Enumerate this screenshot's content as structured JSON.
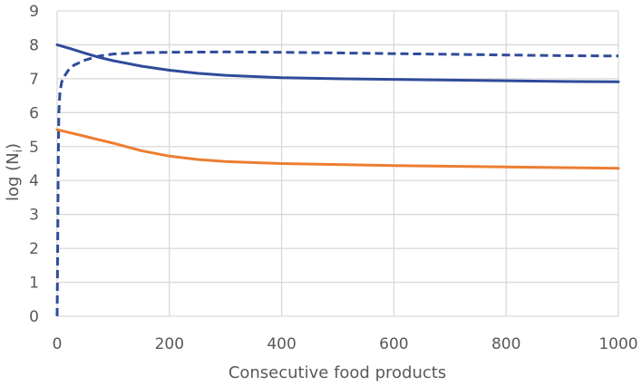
{
  "chart_data": {
    "type": "line",
    "title": "",
    "xlabel": "Consecutive food products",
    "ylabel": {
      "base": "log (N",
      "subscript": "i",
      "close": ")"
    },
    "xlim": [
      0,
      1000
    ],
    "ylim": [
      0,
      9
    ],
    "xticks": [
      0,
      200,
      400,
      600,
      800,
      1000
    ],
    "yticks": [
      0,
      1,
      2,
      3,
      4,
      5,
      6,
      7,
      8,
      9
    ],
    "grid": true,
    "legend": "none",
    "series": [
      {
        "name": "solid-blue",
        "color": "#2f4b9a",
        "dash": "solid",
        "x": [
          0,
          25,
          50,
          75,
          100,
          150,
          200,
          250,
          300,
          400,
          500,
          600,
          700,
          800,
          900,
          1000
        ],
        "y": [
          8.0,
          7.88,
          7.75,
          7.63,
          7.53,
          7.37,
          7.25,
          7.16,
          7.1,
          7.03,
          7.0,
          6.98,
          6.96,
          6.94,
          6.92,
          6.91
        ]
      },
      {
        "name": "dashed-blue",
        "color": "#2f4b9a",
        "dash": "dashed",
        "x": [
          0,
          1,
          2,
          3,
          5,
          8,
          12,
          20,
          30,
          50,
          75,
          100,
          150,
          200,
          300,
          400,
          500,
          600,
          700,
          800,
          900,
          1000
        ],
        "y": [
          0.0,
          2.0,
          4.5,
          6.0,
          6.6,
          6.9,
          7.05,
          7.25,
          7.4,
          7.55,
          7.67,
          7.73,
          7.77,
          7.78,
          7.79,
          7.78,
          7.76,
          7.74,
          7.72,
          7.7,
          7.68,
          7.67
        ]
      },
      {
        "name": "solid-orange",
        "color": "#ed7d31",
        "dash": "solid",
        "x": [
          0,
          25,
          50,
          75,
          100,
          150,
          200,
          250,
          300,
          400,
          500,
          600,
          700,
          800,
          900,
          1000
        ],
        "y": [
          5.5,
          5.4,
          5.3,
          5.2,
          5.1,
          4.88,
          4.72,
          4.62,
          4.56,
          4.5,
          4.47,
          4.44,
          4.42,
          4.4,
          4.38,
          4.36
        ]
      }
    ]
  }
}
